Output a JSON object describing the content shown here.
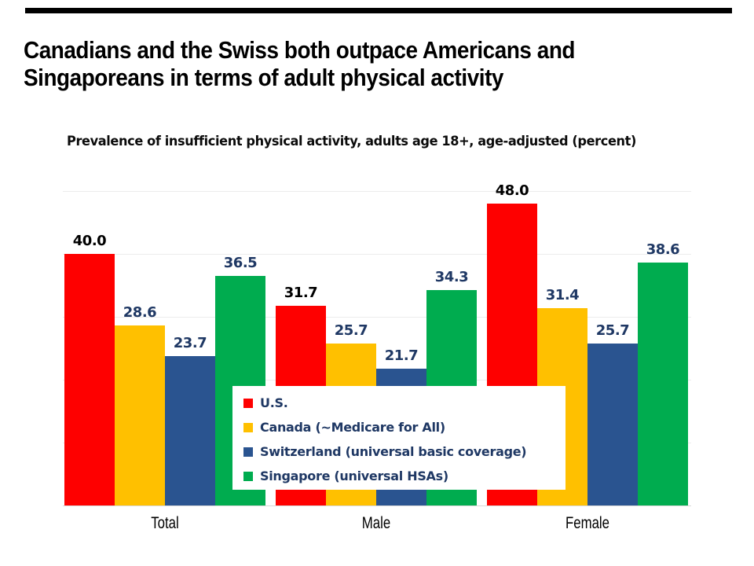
{
  "slide": {
    "title_line1": "Canadians and the Swiss both outpace Americans and",
    "title_line2": "Singaporeans in terms of adult physical activity"
  },
  "chart_data": {
    "type": "bar",
    "title": "Prevalence of insufficient physical activity, adults age 18+, age-adjusted (percent)",
    "categories": [
      "Total",
      "Male",
      "Female"
    ],
    "series": [
      {
        "name": "U.S.",
        "color": "#fe0000",
        "label_color": "#000000",
        "values": [
          40.0,
          31.7,
          48.0
        ]
      },
      {
        "name": "Canada (~Medicare for All)",
        "color": "#ffc000",
        "label_color": "#1f3864",
        "values": [
          28.6,
          25.7,
          31.4
        ]
      },
      {
        "name": "Switzerland (universal basic coverage)",
        "color": "#2a5490",
        "label_color": "#1f3864",
        "values": [
          23.7,
          21.7,
          25.7
        ]
      },
      {
        "name": "Singapore (universal HSAs)",
        "color": "#00ac4f",
        "label_color": "#1f3864",
        "values": [
          36.5,
          34.3,
          38.6
        ]
      }
    ],
    "ylim": [
      0,
      50
    ],
    "gridlines": [
      10,
      20,
      30,
      40,
      50
    ],
    "grid_on": true,
    "value_labels": "one decimal, above each bar",
    "legend_position": "white box overlaid on lower center of plot",
    "colors": {
      "grid": "#ececec",
      "axis_line": "#d9d9d9",
      "legend_text": "#1f3864",
      "title_text": "#000000"
    }
  }
}
